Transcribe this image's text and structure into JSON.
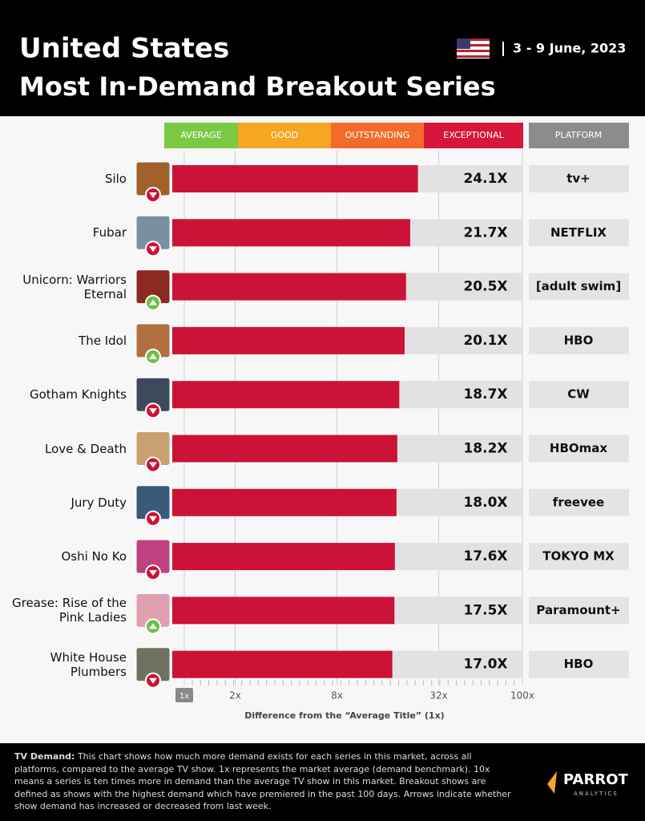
{
  "header": {
    "title": "United States",
    "subtitle": "Most In-Demand Breakout Series",
    "date": "3 - 9 June, 2023"
  },
  "chart_data": {
    "type": "bar",
    "orientation": "horizontal",
    "bands": [
      {
        "label": "AVERAGE",
        "color": "#7ac943"
      },
      {
        "label": "GOOD",
        "color": "#f5a623"
      },
      {
        "label": "OUTSTANDING",
        "color": "#f26b2b"
      },
      {
        "label": "EXCEPTIONAL",
        "color": "#d6163a"
      }
    ],
    "platform_header": "PLATFORM",
    "categories": [
      "Silo",
      "Fubar",
      "Unicorn: Warriors Eternal",
      "The Idol",
      "Gotham Knights",
      "Love & Death",
      "Jury Duty",
      "Oshi No Ko",
      "Grease: Rise of the Pink Ladies",
      "White House Plumbers"
    ],
    "values": [
      24.1,
      21.7,
      20.5,
      20.1,
      18.7,
      18.2,
      18.0,
      17.6,
      17.5,
      17.0
    ],
    "value_labels": [
      "24.1X",
      "21.7X",
      "20.5X",
      "20.1X",
      "18.7X",
      "18.2X",
      "18.0X",
      "17.6X",
      "17.5X",
      "17.0X"
    ],
    "trend": [
      "down",
      "down",
      "up",
      "up",
      "down",
      "down",
      "down",
      "down",
      "up",
      "down"
    ],
    "platforms": [
      "tv+",
      "NETFLIX",
      "[adult swim]",
      "HBO",
      "CW",
      "HBOmax",
      "freevee",
      "TOKYO MX",
      "Paramount+",
      "HBO"
    ],
    "color": "#cc1236",
    "xscale": "log",
    "xlim": [
      1,
      100
    ],
    "xticks": [
      {
        "value": 1,
        "label": "1x"
      },
      {
        "value": 2,
        "label": "2x"
      },
      {
        "value": 8,
        "label": "8x"
      },
      {
        "value": 32,
        "label": "32x"
      },
      {
        "value": 100,
        "label": "100x"
      }
    ],
    "xlabel": "Difference from the “Average Title” (1x)"
  },
  "footer": {
    "note_label": "TV Demand:",
    "note": "This chart shows how much more demand exists for each series in this market, across all platforms, compared to the average TV show. 1x represents the market average (demand benchmark). 10x means a series is ten times more in demand than the average TV show in this market. Breakout shows are defined as shows with the highest demand which have premiered in the past 100 days. Arrows indicate whether show demand has increased or decreased from last week.",
    "logo": "PARROT",
    "logo_sub": "ANALYTICS"
  }
}
